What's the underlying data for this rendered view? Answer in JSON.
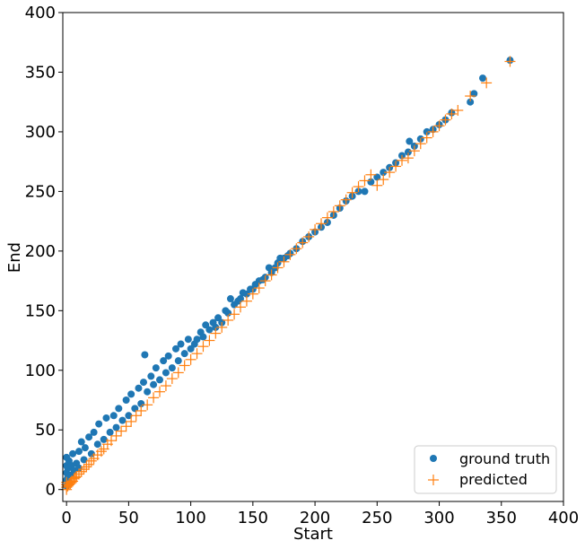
{
  "chart_data": {
    "type": "scatter",
    "xlabel": "Start",
    "ylabel": "End",
    "xlim": [
      -3,
      400
    ],
    "ylim": [
      -10,
      400
    ],
    "xticks": [
      0,
      50,
      100,
      150,
      200,
      250,
      300,
      350,
      400
    ],
    "yticks": [
      0,
      50,
      100,
      150,
      200,
      250,
      300,
      350,
      400
    ],
    "xtick_labels": [
      "0",
      "50",
      "100",
      "150",
      "200",
      "250",
      "300",
      "350",
      "400"
    ],
    "ytick_labels": [
      "0",
      "50",
      "100",
      "150",
      "200",
      "250",
      "300",
      "350",
      "400"
    ],
    "legend_position": "lower-right",
    "series": [
      {
        "name": "ground truth",
        "marker": "circle",
        "color": "#1f77b4",
        "points": [
          [
            0,
            3
          ],
          [
            0,
            8
          ],
          [
            0,
            14
          ],
          [
            0,
            20
          ],
          [
            0,
            27
          ],
          [
            1,
            10
          ],
          [
            1,
            18
          ],
          [
            2,
            6
          ],
          [
            2,
            24
          ],
          [
            3,
            12
          ],
          [
            4,
            20
          ],
          [
            5,
            30
          ],
          [
            6,
            16
          ],
          [
            8,
            22
          ],
          [
            10,
            32
          ],
          [
            10,
            18
          ],
          [
            12,
            40
          ],
          [
            14,
            25
          ],
          [
            15,
            35
          ],
          [
            18,
            44
          ],
          [
            20,
            30
          ],
          [
            22,
            48
          ],
          [
            25,
            38
          ],
          [
            26,
            55
          ],
          [
            30,
            42
          ],
          [
            32,
            60
          ],
          [
            35,
            48
          ],
          [
            38,
            62
          ],
          [
            40,
            52
          ],
          [
            42,
            68
          ],
          [
            45,
            58
          ],
          [
            48,
            75
          ],
          [
            50,
            62
          ],
          [
            52,
            80
          ],
          [
            55,
            68
          ],
          [
            58,
            85
          ],
          [
            60,
            72
          ],
          [
            62,
            90
          ],
          [
            63,
            113
          ],
          [
            65,
            82
          ],
          [
            68,
            95
          ],
          [
            70,
            88
          ],
          [
            72,
            102
          ],
          [
            75,
            92
          ],
          [
            78,
            108
          ],
          [
            80,
            98
          ],
          [
            82,
            112
          ],
          [
            85,
            102
          ],
          [
            88,
            118
          ],
          [
            90,
            108
          ],
          [
            92,
            122
          ],
          [
            95,
            114
          ],
          [
            98,
            126
          ],
          [
            100,
            118
          ],
          [
            103,
            122
          ],
          [
            105,
            126
          ],
          [
            108,
            132
          ],
          [
            110,
            128
          ],
          [
            112,
            138
          ],
          [
            115,
            134
          ],
          [
            118,
            140
          ],
          [
            120,
            136
          ],
          [
            122,
            144
          ],
          [
            125,
            140
          ],
          [
            128,
            150
          ],
          [
            130,
            148
          ],
          [
            132,
            160
          ],
          [
            135,
            155
          ],
          [
            138,
            158
          ],
          [
            140,
            160
          ],
          [
            142,
            165
          ],
          [
            145,
            164
          ],
          [
            148,
            168
          ],
          [
            150,
            168
          ],
          [
            152,
            172
          ],
          [
            155,
            175
          ],
          [
            158,
            176
          ],
          [
            160,
            178
          ],
          [
            163,
            186
          ],
          [
            165,
            182
          ],
          [
            168,
            186
          ],
          [
            170,
            190
          ],
          [
            172,
            194
          ],
          [
            175,
            194
          ],
          [
            178,
            196
          ],
          [
            180,
            198
          ],
          [
            185,
            202
          ],
          [
            190,
            208
          ],
          [
            195,
            212
          ],
          [
            200,
            216
          ],
          [
            205,
            220
          ],
          [
            210,
            224
          ],
          [
            215,
            230
          ],
          [
            220,
            236
          ],
          [
            225,
            242
          ],
          [
            230,
            246
          ],
          [
            235,
            250
          ],
          [
            240,
            250
          ],
          [
            245,
            258
          ],
          [
            250,
            262
          ],
          [
            255,
            266
          ],
          [
            260,
            270
          ],
          [
            265,
            274
          ],
          [
            270,
            280
          ],
          [
            275,
            283
          ],
          [
            276,
            292
          ],
          [
            280,
            288
          ],
          [
            285,
            294
          ],
          [
            290,
            300
          ],
          [
            295,
            302
          ],
          [
            300,
            306
          ],
          [
            305,
            310
          ],
          [
            310,
            316
          ],
          [
            325,
            325
          ],
          [
            328,
            332
          ],
          [
            335,
            345
          ],
          [
            357,
            360
          ]
        ]
      },
      {
        "name": "predicted",
        "marker": "plus",
        "color": "#ff7f0e",
        "points": [
          [
            0,
            0
          ],
          [
            0,
            2
          ],
          [
            0,
            4
          ],
          [
            0,
            6
          ],
          [
            1,
            3
          ],
          [
            2,
            4
          ],
          [
            3,
            5
          ],
          [
            4,
            6
          ],
          [
            5,
            7
          ],
          [
            6,
            9
          ],
          [
            7,
            10
          ],
          [
            8,
            11
          ],
          [
            10,
            13
          ],
          [
            12,
            15
          ],
          [
            14,
            17
          ],
          [
            16,
            19
          ],
          [
            18,
            21
          ],
          [
            20,
            24
          ],
          [
            22,
            26
          ],
          [
            25,
            29
          ],
          [
            28,
            32
          ],
          [
            30,
            34
          ],
          [
            33,
            38
          ],
          [
            36,
            41
          ],
          [
            40,
            45
          ],
          [
            44,
            49
          ],
          [
            48,
            53
          ],
          [
            52,
            57
          ],
          [
            56,
            62
          ],
          [
            60,
            66
          ],
          [
            65,
            71
          ],
          [
            70,
            77
          ],
          [
            75,
            82
          ],
          [
            80,
            87
          ],
          [
            85,
            93
          ],
          [
            90,
            98
          ],
          [
            95,
            104
          ],
          [
            100,
            109
          ],
          [
            105,
            114
          ],
          [
            110,
            120
          ],
          [
            115,
            125
          ],
          [
            120,
            131
          ],
          [
            125,
            136
          ],
          [
            130,
            142
          ],
          [
            135,
            147
          ],
          [
            140,
            153
          ],
          [
            145,
            158
          ],
          [
            150,
            164
          ],
          [
            155,
            169
          ],
          [
            160,
            175
          ],
          [
            165,
            180
          ],
          [
            170,
            186
          ],
          [
            175,
            191
          ],
          [
            180,
            197
          ],
          [
            185,
            202
          ],
          [
            190,
            207
          ],
          [
            195,
            212
          ],
          [
            200,
            218
          ],
          [
            205,
            223
          ],
          [
            210,
            228
          ],
          [
            215,
            233
          ],
          [
            220,
            238
          ],
          [
            225,
            243
          ],
          [
            230,
            249
          ],
          [
            235,
            254
          ],
          [
            240,
            259
          ],
          [
            245,
            264
          ],
          [
            250,
            255
          ],
          [
            255,
            260
          ],
          [
            260,
            266
          ],
          [
            265,
            271
          ],
          [
            270,
            276
          ],
          [
            275,
            278
          ],
          [
            280,
            284
          ],
          [
            285,
            290
          ],
          [
            290,
            295
          ],
          [
            295,
            300
          ],
          [
            300,
            305
          ],
          [
            305,
            310
          ],
          [
            310,
            315
          ],
          [
            315,
            318
          ],
          [
            325,
            330
          ],
          [
            338,
            341
          ],
          [
            357,
            359
          ]
        ]
      }
    ]
  }
}
